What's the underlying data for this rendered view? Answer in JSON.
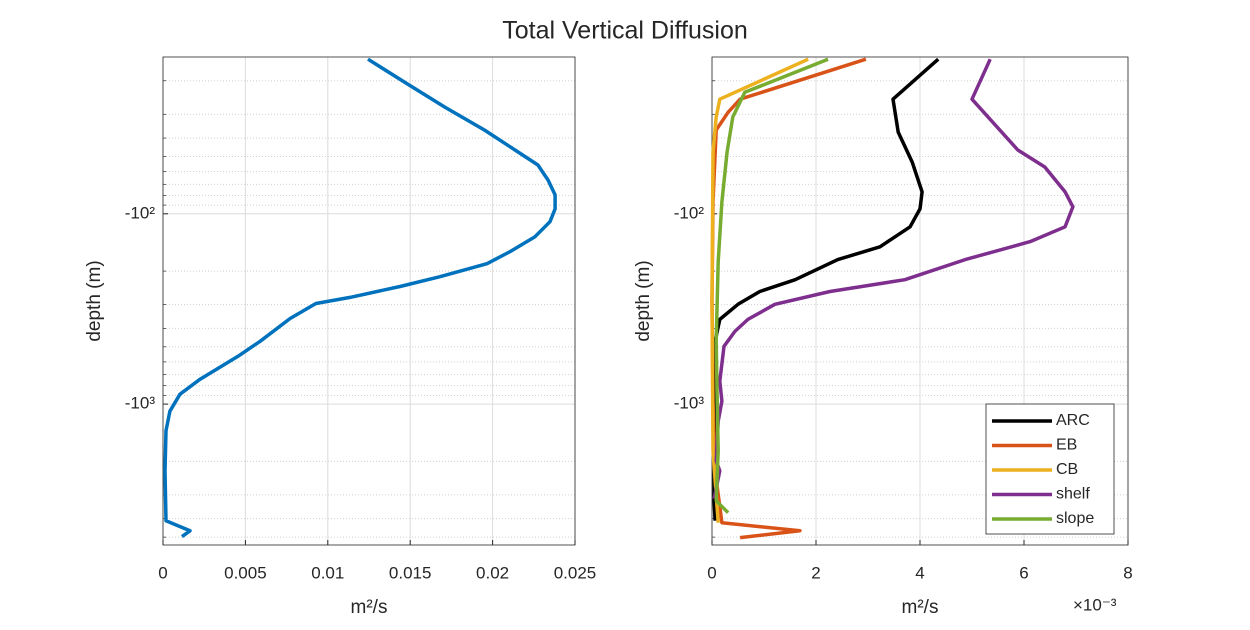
{
  "title": "Total Vertical Diffusion",
  "chart_data": [
    {
      "type": "line",
      "xlabel": "m²/s",
      "ylabel": "depth (m)",
      "color": "#0072BD",
      "values": [
        0.01244,
        0.01468,
        0.0171,
        0.0195,
        0.02136,
        0.02275,
        0.02336,
        0.02379,
        0.02379,
        0.02348,
        0.02257,
        0.02106,
        0.01966,
        0.01681,
        0.01438,
        0.01135,
        0.00928,
        0.00771,
        0.00589,
        0.00455,
        0.00225,
        0.00103,
        0.00042,
        0.00018,
        0.00012,
        0.00018,
        0.00164,
        0.00115
      ],
      "depth": [
        -15.4,
        -20.4,
        -27.5,
        -36.3,
        -46.2,
        -55.4,
        -66.4,
        -79.6,
        -94.2,
        -110,
        -132,
        -158,
        -183,
        -214,
        -241,
        -275,
        -296,
        -355,
        -468,
        -561,
        -740,
        -887,
        -1090,
        -1380,
        -2240,
        -4100,
        -4630,
        -4970
      ],
      "xlim": [
        0,
        0.025
      ],
      "xticks": [
        0,
        0.005,
        0.01,
        0.015,
        0.02,
        0.025
      ],
      "ylim": [
        -5500,
        -15
      ],
      "yticks": [
        {
          "value": -100,
          "label": "-10²"
        },
        {
          "value": -1000,
          "label": "-10³"
        }
      ],
      "log_y": true,
      "grid": true,
      "minor_grid": true
    },
    {
      "type": "line",
      "xlabel": "m²/s",
      "ylabel": "depth (m)",
      "x_multiplier": "×10⁻³",
      "series": [
        {
          "name": "ARC",
          "color": "#000000",
          "values": [
            4.35,
            3.48,
            3.58,
            3.85,
            4.04,
            4.0,
            3.81,
            3.23,
            2.42,
            1.6,
            0.92,
            0.5,
            0.15,
            0.06,
            0.08,
            0.06,
            0.04,
            0.04,
            0.06
          ],
          "depth": [
            -15.4,
            -25,
            -37.2,
            -53.5,
            -76.7,
            -94.2,
            -117,
            -149,
            -174,
            -222,
            -256,
            -299,
            -359,
            -468,
            -758,
            -1230,
            -1990,
            -3220,
            -4100
          ]
        },
        {
          "name": "EB",
          "color": "#D95319",
          "values": [
            2.96,
            0.54,
            0.31,
            0.08,
            0.02,
            0,
            0.02,
            0.06,
            0.19,
            1.69,
            0.54
          ],
          "depth": [
            -15.4,
            -25,
            -29.3,
            -36.3,
            -86.5,
            -289,
            -964,
            -2240,
            -4200,
            -4630,
            -5030
          ]
        },
        {
          "name": "CB",
          "color": "#EDB120",
          "values": [
            1.85,
            0.15,
            0.08,
            0.02,
            0,
            0.02,
            0.12
          ],
          "depth": [
            -15.4,
            -25,
            -31,
            -47.3,
            -289,
            -1760,
            -4200
          ]
        },
        {
          "name": "shelf",
          "color": "#7E2F8E",
          "values": [
            5.35,
            5.0,
            5.88,
            6.4,
            6.79,
            6.94,
            6.79,
            6.12,
            4.87,
            3.71,
            2.27,
            1.21,
            0.69,
            0.44,
            0.23,
            0.15,
            0.19,
            0.12,
            0.08,
            0.15,
            0.04
          ],
          "depth": [
            -15.4,
            -25,
            -46.2,
            -56.8,
            -76.7,
            -91.9,
            -117,
            -140,
            -174,
            -222,
            -256,
            -299,
            -359,
            -415,
            -497,
            -758,
            -964,
            -1230,
            -1990,
            -2240,
            -3140
          ]
        },
        {
          "name": "slope",
          "color": "#77AC30",
          "values": [
            2.23,
            0.63,
            0.4,
            0.29,
            0.19,
            0.12,
            0.08,
            0.1,
            0.12,
            0.08,
            0.31
          ],
          "depth": [
            -15.4,
            -23,
            -31,
            -47.3,
            -86.5,
            -178,
            -468,
            -964,
            -1760,
            -3220,
            -3720
          ]
        }
      ],
      "xlim": [
        0,
        8
      ],
      "xticks": [
        0,
        2,
        4,
        6,
        8
      ],
      "ylim": [
        -5500,
        -15
      ],
      "yticks": [
        {
          "value": -100,
          "label": "-10²"
        },
        {
          "value": -1000,
          "label": "-10³"
        }
      ],
      "log_y": true,
      "grid": true,
      "minor_grid": true,
      "legend": "lower right"
    }
  ]
}
